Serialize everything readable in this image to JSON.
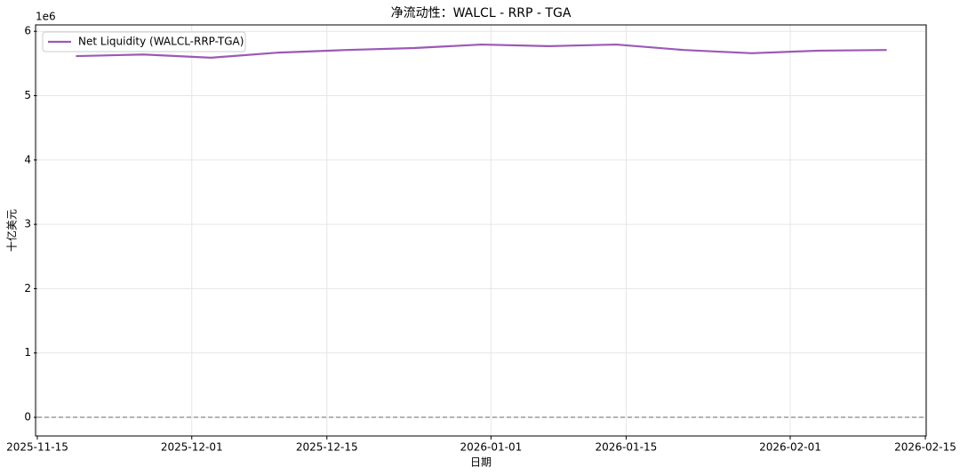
{
  "chart_data": {
    "type": "line",
    "title": "净流动性：WALCL - RRP - TGA",
    "xlabel": "日期",
    "ylabel": "十亿美元",
    "y_offset_text": "1e6",
    "x": [
      "2025-11-19",
      "2025-11-26",
      "2025-12-03",
      "2025-12-10",
      "2025-12-17",
      "2025-12-24",
      "2025-12-31",
      "2026-01-07",
      "2026-01-14",
      "2026-01-21",
      "2026-01-28",
      "2026-02-04",
      "2026-02-11"
    ],
    "series": [
      {
        "name": "Net Liquidity (WALCL-RRP-TGA)",
        "color": "#9b59b6",
        "values": [
          5615000,
          5640000,
          5590000,
          5670000,
          5710000,
          5740000,
          5795000,
          5770000,
          5795000,
          5710000,
          5660000,
          5700000,
          5710000
        ]
      }
    ],
    "xlim": [
      "2025-11-15",
      "2026-02-15"
    ],
    "xticks": [
      "2025-11-15",
      "2025-12-01",
      "2025-12-15",
      "2026-01-01",
      "2026-01-15",
      "2026-02-01",
      "2026-02-15"
    ],
    "ylim": [
      -290000,
      6100000
    ],
    "yticks": [
      {
        "value": 0,
        "label": "0"
      },
      {
        "value": 1000000,
        "label": "1"
      },
      {
        "value": 2000000,
        "label": "2"
      },
      {
        "value": 3000000,
        "label": "3"
      },
      {
        "value": 4000000,
        "label": "4"
      },
      {
        "value": 5000000,
        "label": "5"
      },
      {
        "value": 6000000,
        "label": "6"
      }
    ],
    "reference_line": 0,
    "grid": true,
    "legend": "upper left"
  }
}
